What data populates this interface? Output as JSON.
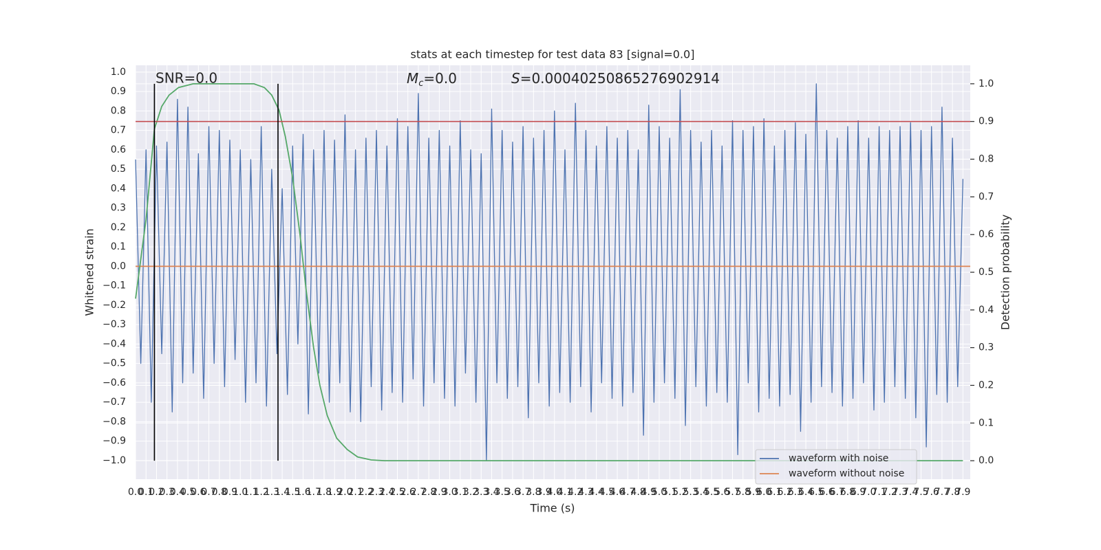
{
  "chart_data": {
    "type": "line",
    "title": "stats at each timestep for test data 83 [signal=0.0]",
    "xlabel": "Time (s)",
    "ylabel": "Whitened strain",
    "y2label": "Detection probability",
    "annotations": {
      "snr": "SNR=0.0",
      "mc": {
        "symbol": "M",
        "subscript": "c",
        "text": "=0.0"
      },
      "s": {
        "symbol": "S",
        "text": "=0.00040250865276902914"
      }
    },
    "xlim": [
      0,
      7.97
    ],
    "ylim": [
      -1.096,
      1.035
    ],
    "y2lim": [
      -0.049,
      1.049
    ],
    "xticks": [
      {
        "value": 0,
        "label": "0.0"
      },
      0.1,
      0.2,
      0.3,
      0.4,
      0.5,
      0.6,
      0.7,
      0.8,
      0.9,
      {
        "value": 1,
        "label": "1.0"
      },
      1.1,
      1.2,
      1.3,
      1.4,
      1.5,
      1.6,
      1.7,
      1.8,
      1.9,
      {
        "value": 2,
        "label": "2.0"
      },
      2.1,
      2.2,
      2.3,
      2.4,
      2.5,
      2.6,
      2.7,
      2.8,
      2.9,
      {
        "value": 3,
        "label": "3.0"
      },
      3.1,
      3.2,
      3.3,
      3.4,
      3.5,
      3.6,
      3.7,
      3.8,
      3.9,
      {
        "value": 4,
        "label": "4.0"
      },
      4.1,
      4.2,
      4.3,
      4.4,
      4.5,
      4.6,
      4.7,
      4.8,
      4.9,
      {
        "value": 5,
        "label": "5.0"
      },
      5.1,
      5.2,
      5.3,
      5.4,
      5.5,
      5.6,
      5.7,
      5.8,
      5.9,
      {
        "value": 6,
        "label": "6.0"
      },
      6.1,
      6.2,
      6.3,
      6.4,
      6.5,
      6.6,
      6.7,
      6.8,
      6.9,
      {
        "value": 7,
        "label": "7.0"
      },
      7.1,
      7.2,
      7.3,
      7.4,
      7.5,
      7.6,
      7.7,
      7.8,
      7.9
    ],
    "yticks": [
      {
        "value": -1,
        "label": "−1.0"
      },
      {
        "value": -0.9,
        "label": "−0.9"
      },
      {
        "value": -0.8,
        "label": "−0.8"
      },
      {
        "value": -0.7,
        "label": "−0.7"
      },
      {
        "value": -0.6,
        "label": "−0.6"
      },
      {
        "value": -0.5,
        "label": "−0.5"
      },
      {
        "value": -0.4,
        "label": "−0.4"
      },
      {
        "value": -0.3,
        "label": "−0.3"
      },
      {
        "value": -0.2,
        "label": "−0.2"
      },
      {
        "value": -0.1,
        "label": "−0.1"
      },
      {
        "value": 0,
        "label": "0.0"
      },
      0.1,
      0.2,
      0.3,
      0.4,
      0.5,
      0.6,
      0.7,
      0.8,
      0.9,
      {
        "value": 1,
        "label": "1.0"
      }
    ],
    "y2ticks": [
      {
        "value": 0,
        "label": "0.0"
      },
      0.1,
      0.2,
      0.3,
      0.4,
      0.5,
      0.6,
      0.7,
      0.8,
      0.9,
      {
        "value": 1,
        "label": "1.0"
      }
    ],
    "grid": true,
    "legend": "lower right",
    "series": [
      {
        "name": "waveform with noise",
        "color": "#4c72b0",
        "x": [
          0,
          0.05,
          0.1,
          0.15,
          0.2,
          0.25,
          0.3,
          0.35,
          0.4,
          0.45,
          0.5,
          0.55,
          0.6,
          0.65,
          0.7,
          0.75,
          0.8,
          0.85,
          0.9,
          0.95,
          1,
          1.05,
          1.1,
          1.15,
          1.2,
          1.25,
          1.3,
          1.35,
          1.4,
          1.45,
          1.5,
          1.55,
          1.6,
          1.65,
          1.7,
          1.75,
          1.8,
          1.85,
          1.9,
          1.95,
          2,
          2.05,
          2.1,
          2.15,
          2.2,
          2.25,
          2.3,
          2.35,
          2.4,
          2.45,
          2.5,
          2.55,
          2.6,
          2.65,
          2.7,
          2.75,
          2.8,
          2.85,
          2.9,
          2.95,
          3,
          3.05,
          3.1,
          3.15,
          3.2,
          3.25,
          3.3,
          3.35,
          3.4,
          3.45,
          3.5,
          3.55,
          3.6,
          3.65,
          3.7,
          3.75,
          3.8,
          3.85,
          3.9,
          3.95,
          4,
          4.05,
          4.1,
          4.15,
          4.2,
          4.25,
          4.3,
          4.35,
          4.4,
          4.45,
          4.5,
          4.55,
          4.6,
          4.65,
          4.7,
          4.75,
          4.8,
          4.85,
          4.9,
          4.95,
          5,
          5.05,
          5.1,
          5.15,
          5.2,
          5.25,
          5.3,
          5.35,
          5.4,
          5.45,
          5.5,
          5.55,
          5.6,
          5.65,
          5.7,
          5.75,
          5.8,
          5.85,
          5.9,
          5.95,
          6,
          6.05,
          6.1,
          6.15,
          6.2,
          6.25,
          6.3,
          6.35,
          6.4,
          6.45,
          6.5,
          6.55,
          6.6,
          6.65,
          6.7,
          6.75,
          6.8,
          6.85,
          6.9,
          6.95,
          7,
          7.05,
          7.1,
          7.15,
          7.2,
          7.25,
          7.3,
          7.35,
          7.4,
          7.45,
          7.5,
          7.55,
          7.6,
          7.65,
          7.7,
          7.75,
          7.8,
          7.85,
          7.9
        ],
        "values": [
          0.55,
          -0.5,
          0.6,
          -0.7,
          0.62,
          -0.45,
          0.64,
          -0.75,
          0.86,
          -0.6,
          0.82,
          -0.55,
          0.58,
          -0.68,
          0.72,
          -0.5,
          0.7,
          -0.62,
          0.65,
          -0.48,
          0.6,
          -0.7,
          0.55,
          -0.6,
          0.72,
          -0.72,
          0.5,
          -0.45,
          0.4,
          -0.66,
          0.62,
          -0.4,
          0.68,
          -0.76,
          0.6,
          -0.55,
          0.7,
          -0.7,
          0.65,
          -0.6,
          0.78,
          -0.75,
          0.6,
          -0.8,
          0.66,
          -0.62,
          0.7,
          -0.74,
          0.62,
          -0.65,
          0.76,
          -0.7,
          0.72,
          -0.58,
          0.89,
          -0.72,
          0.66,
          -0.6,
          0.7,
          -0.68,
          0.62,
          -0.72,
          0.75,
          -0.55,
          0.6,
          -0.7,
          0.58,
          -1.0,
          0.81,
          -0.6,
          0.7,
          -0.68,
          0.64,
          -0.62,
          0.72,
          -0.78,
          0.66,
          -0.6,
          0.7,
          -0.72,
          0.8,
          -0.65,
          0.6,
          -0.7,
          0.84,
          -0.62,
          0.7,
          -0.75,
          0.62,
          -0.6,
          0.72,
          -0.68,
          0.66,
          -0.72,
          0.7,
          -0.65,
          0.6,
          -0.87,
          0.83,
          -0.7,
          0.72,
          -0.6,
          0.66,
          -0.68,
          0.91,
          -0.82,
          0.7,
          -0.62,
          0.64,
          -0.72,
          0.7,
          -0.65,
          0.62,
          -0.7,
          0.75,
          -0.97,
          0.7,
          -0.6,
          0.72,
          -0.75,
          0.76,
          -0.68,
          0.62,
          -0.72,
          0.7,
          -0.66,
          0.74,
          -0.85,
          0.68,
          -0.7,
          0.94,
          -0.62,
          0.7,
          -0.65,
          0.66,
          -0.72,
          0.72,
          -0.68,
          0.75,
          -0.6,
          0.66,
          -0.74,
          0.72,
          -0.7,
          0.7,
          -0.62,
          0.72,
          -0.68,
          0.74,
          -0.78,
          0.7,
          -0.93,
          0.72,
          -0.66,
          0.82,
          -0.7,
          0.66,
          -0.62,
          0.45
        ]
      },
      {
        "name": "waveform without noise",
        "color": "#dd8452",
        "x": [
          0,
          7.97
        ],
        "values": [
          0,
          0
        ]
      }
    ],
    "detection_probability": {
      "color": "#55a868",
      "x": [
        0,
        0.1,
        0.18,
        0.25,
        0.32,
        0.41,
        0.55,
        0.8,
        1.13,
        1.23,
        1.3,
        1.37,
        1.43,
        1.5,
        1.57,
        1.63,
        1.7,
        1.76,
        1.83,
        1.92,
        2.02,
        2.12,
        2.25,
        2.38,
        7.9
      ],
      "values": [
        0.43,
        0.64,
        0.88,
        0.94,
        0.97,
        0.99,
        1.0,
        1.0,
        1.0,
        0.99,
        0.97,
        0.93,
        0.86,
        0.75,
        0.6,
        0.45,
        0.3,
        0.2,
        0.12,
        0.06,
        0.03,
        0.01,
        0.002,
        0,
        0
      ]
    },
    "threshold": {
      "value": 0.9,
      "color": "#c44e52"
    },
    "vlines": [
      0.18,
      1.36
    ]
  }
}
